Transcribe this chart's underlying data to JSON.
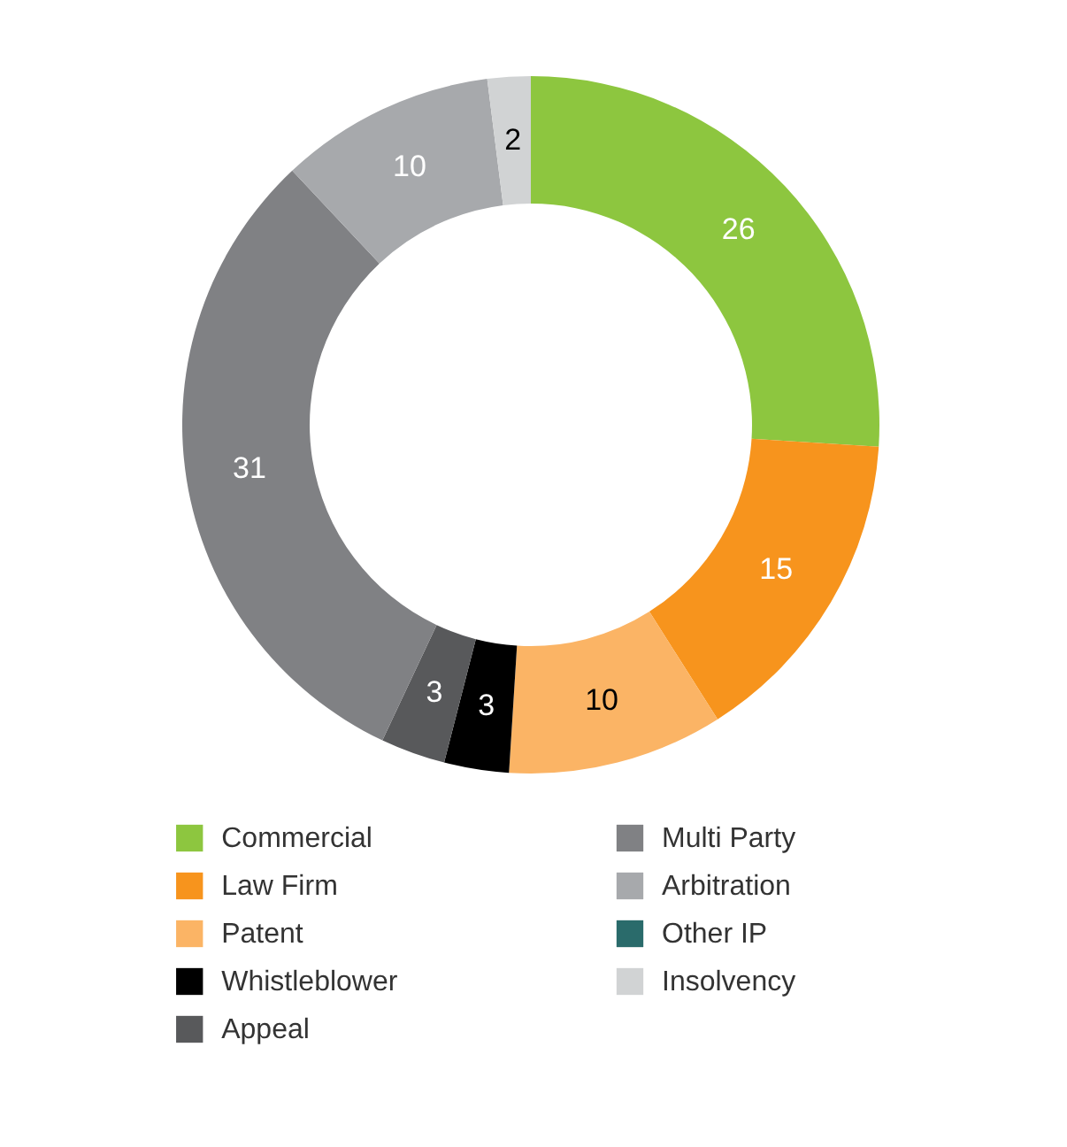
{
  "chart_data": {
    "type": "donut",
    "categories": [
      "Commercial",
      "Law Firm",
      "Patent",
      "Whistleblower",
      "Appeal",
      "Multi Party",
      "Arbitration",
      "Other IP",
      "Insolvency"
    ],
    "values": [
      26,
      15,
      10,
      3,
      3,
      31,
      10,
      0,
      2
    ],
    "colors": [
      "#8dc63f",
      "#f7941d",
      "#fbb465",
      "#000000",
      "#58595b",
      "#808184",
      "#a7a9ac",
      "#2a6b6b",
      "#d1d3d4"
    ],
    "value_labels": [
      "26",
      "15",
      "10",
      "3",
      "3",
      "31",
      "10",
      null,
      "2"
    ],
    "legend": "bottom"
  }
}
